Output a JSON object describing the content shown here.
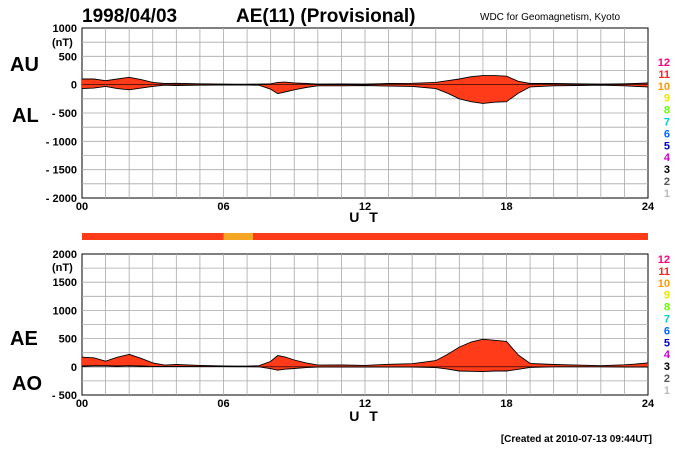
{
  "header": {
    "date": "1998/04/03",
    "title": "AE(11) (Provisional)",
    "source": "WDC for Geomagnetism, Kyoto"
  },
  "footer": {
    "created": "[Created at 2010-07-13 09:44UT]"
  },
  "station_scale": {
    "labels": [
      "12",
      "11",
      "10",
      "9",
      "8",
      "7",
      "6",
      "5",
      "4",
      "3",
      "2",
      "1"
    ],
    "colors": [
      "#ff0080",
      "#ff2020",
      "#ff9900",
      "#e6e600",
      "#66ff00",
      "#00cccc",
      "#0066ff",
      "#0000cc",
      "#cc00cc",
      "#000000",
      "#555555",
      "#bbbbbb"
    ]
  },
  "chart_data": [
    {
      "type": "area",
      "name": "AU/AL panel",
      "labels": [
        "AU",
        "AL"
      ],
      "ylabel": "(nT)",
      "xlabel": "U T",
      "xlim": [
        0,
        24
      ],
      "ylim": [
        -2000,
        1000
      ],
      "xticks": [
        "00",
        "06",
        "12",
        "18",
        "24"
      ],
      "yticks": [
        "1000",
        "500",
        "0",
        "- 500",
        "- 1000",
        "- 1500",
        "- 2000"
      ],
      "x_hours": [
        0,
        0.5,
        1,
        1.5,
        2,
        2.5,
        3,
        3.5,
        4,
        5,
        6,
        6.5,
        7,
        7.5,
        8,
        8.3,
        8.6,
        9,
        9.5,
        10,
        11,
        12,
        13,
        14,
        15,
        15.5,
        16,
        16.5,
        17,
        17.5,
        18,
        18.5,
        19,
        20,
        21,
        22,
        23,
        23.5,
        24
      ],
      "upper": [
        100,
        100,
        70,
        100,
        130,
        90,
        40,
        20,
        25,
        15,
        10,
        8,
        8,
        10,
        15,
        40,
        45,
        30,
        20,
        10,
        12,
        10,
        20,
        25,
        40,
        70,
        100,
        140,
        160,
        160,
        150,
        60,
        20,
        20,
        15,
        10,
        15,
        20,
        30
      ],
      "lower": [
        -70,
        -60,
        -30,
        -70,
        -90,
        -60,
        -30,
        -10,
        -15,
        -10,
        -5,
        -5,
        -5,
        -10,
        -80,
        -160,
        -130,
        -90,
        -50,
        -20,
        -20,
        -15,
        -25,
        -30,
        -70,
        -150,
        -250,
        -300,
        -330,
        -310,
        -300,
        -150,
        -40,
        -20,
        -15,
        -10,
        -20,
        -30,
        -40
      ]
    },
    {
      "type": "area",
      "name": "AE/AO panel",
      "labels": [
        "AE",
        "AO"
      ],
      "ylabel": "(nT)",
      "xlabel": "U T",
      "xlim": [
        0,
        24
      ],
      "ylim": [
        -500,
        2000
      ],
      "xticks": [
        "00",
        "06",
        "12",
        "18",
        "24"
      ],
      "yticks": [
        "2000",
        "1500",
        "1000",
        "500",
        "0",
        "- 500"
      ],
      "x_hours": [
        0,
        0.5,
        1,
        1.5,
        2,
        2.5,
        3,
        3.5,
        4,
        5,
        6,
        6.5,
        7,
        7.5,
        8,
        8.3,
        8.6,
        9,
        9.5,
        10,
        11,
        12,
        13,
        14,
        15,
        15.5,
        16,
        16.5,
        17,
        17.5,
        18,
        18.5,
        19,
        20,
        21,
        22,
        23,
        23.5,
        24
      ],
      "ae": [
        170,
        160,
        100,
        170,
        220,
        150,
        70,
        30,
        40,
        25,
        15,
        13,
        13,
        20,
        95,
        200,
        175,
        120,
        70,
        30,
        32,
        25,
        45,
        55,
        110,
        220,
        350,
        440,
        490,
        470,
        450,
        210,
        60,
        40,
        30,
        20,
        35,
        50,
        70
      ],
      "ao": [
        15,
        20,
        20,
        15,
        20,
        15,
        5,
        5,
        5,
        3,
        3,
        2,
        2,
        0,
        -33,
        -60,
        -43,
        -30,
        -15,
        -5,
        -4,
        -3,
        -3,
        -3,
        -15,
        -40,
        -75,
        -80,
        -85,
        -75,
        -75,
        -45,
        -10,
        0,
        0,
        0,
        -3,
        -5,
        -5
      ]
    }
  ],
  "status_bar": {
    "segments": [
      {
        "start_hour": 0,
        "end_hour": 6.0,
        "color": "#ff3b1a"
      },
      {
        "start_hour": 6.0,
        "end_hour": 7.25,
        "color": "#f5a623"
      },
      {
        "start_hour": 7.25,
        "end_hour": 24,
        "color": "#ff3b1a"
      }
    ]
  }
}
